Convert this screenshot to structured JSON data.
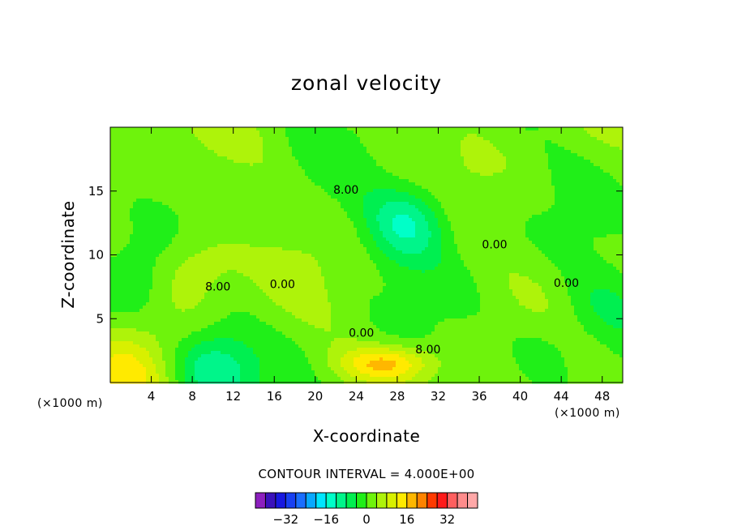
{
  "chart_data": {
    "type": "heatmap",
    "title": "zonal velocity",
    "xlabel": "X-coordinate",
    "ylabel": "Z-coordinate",
    "x_unit": "(×1000 m)",
    "xlim": [
      0,
      50
    ],
    "ylim": [
      0,
      20
    ],
    "x_ticks": [
      4,
      8,
      12,
      16,
      20,
      24,
      28,
      32,
      36,
      40,
      44,
      48
    ],
    "y_ticks": [
      5,
      10,
      15
    ],
    "contour_interval_text": "CONTOUR INTERVAL = 4.000E+00",
    "contour_labels": [
      {
        "text": "8.00",
        "x": 10.5,
        "z": 7.2
      },
      {
        "text": "0.00",
        "x": 16.8,
        "z": 7.4
      },
      {
        "text": "8.00",
        "x": 23.0,
        "z": 14.8
      },
      {
        "text": "0.00",
        "x": 37.5,
        "z": 10.5
      },
      {
        "text": "0.00",
        "x": 24.5,
        "z": 3.6
      },
      {
        "text": "8.00",
        "x": 31.0,
        "z": 2.3
      },
      {
        "text": "0.00",
        "x": 44.5,
        "z": 7.5
      }
    ],
    "features": [
      {
        "kind": "min",
        "x": 29,
        "z": 12.5,
        "value": -14
      },
      {
        "kind": "min",
        "x": 10,
        "z": 1,
        "value": -13
      },
      {
        "kind": "min",
        "x": 2,
        "z": 8,
        "value": -6
      },
      {
        "kind": "min",
        "x": 48,
        "z": 6,
        "value": -6
      },
      {
        "kind": "min",
        "x": 42,
        "z": 2.5,
        "value": -5
      },
      {
        "kind": "max",
        "x": 27,
        "z": 1.5,
        "value": 14
      },
      {
        "kind": "max",
        "x": 8,
        "z": 9,
        "value": 8
      },
      {
        "kind": "max",
        "x": 1,
        "z": 0.3,
        "value": 10
      }
    ],
    "colorbar": {
      "ticks": [
        "-32",
        "-16",
        "0",
        "16",
        "32"
      ],
      "colors": [
        "#8c1fbe",
        "#3a11bb",
        "#1818e0",
        "#1840f2",
        "#1a6eff",
        "#08a8ff",
        "#00e6ff",
        "#00ffc8",
        "#00f58a",
        "#00ef50",
        "#20ef18",
        "#6ef30c",
        "#aef30a",
        "#d8f000",
        "#ffea00",
        "#ffb700",
        "#ff8300",
        "#ff3a00",
        "#ff1a1a",
        "#ff5f5f",
        "#ff8c8c",
        "#ffa8a8"
      ]
    }
  }
}
